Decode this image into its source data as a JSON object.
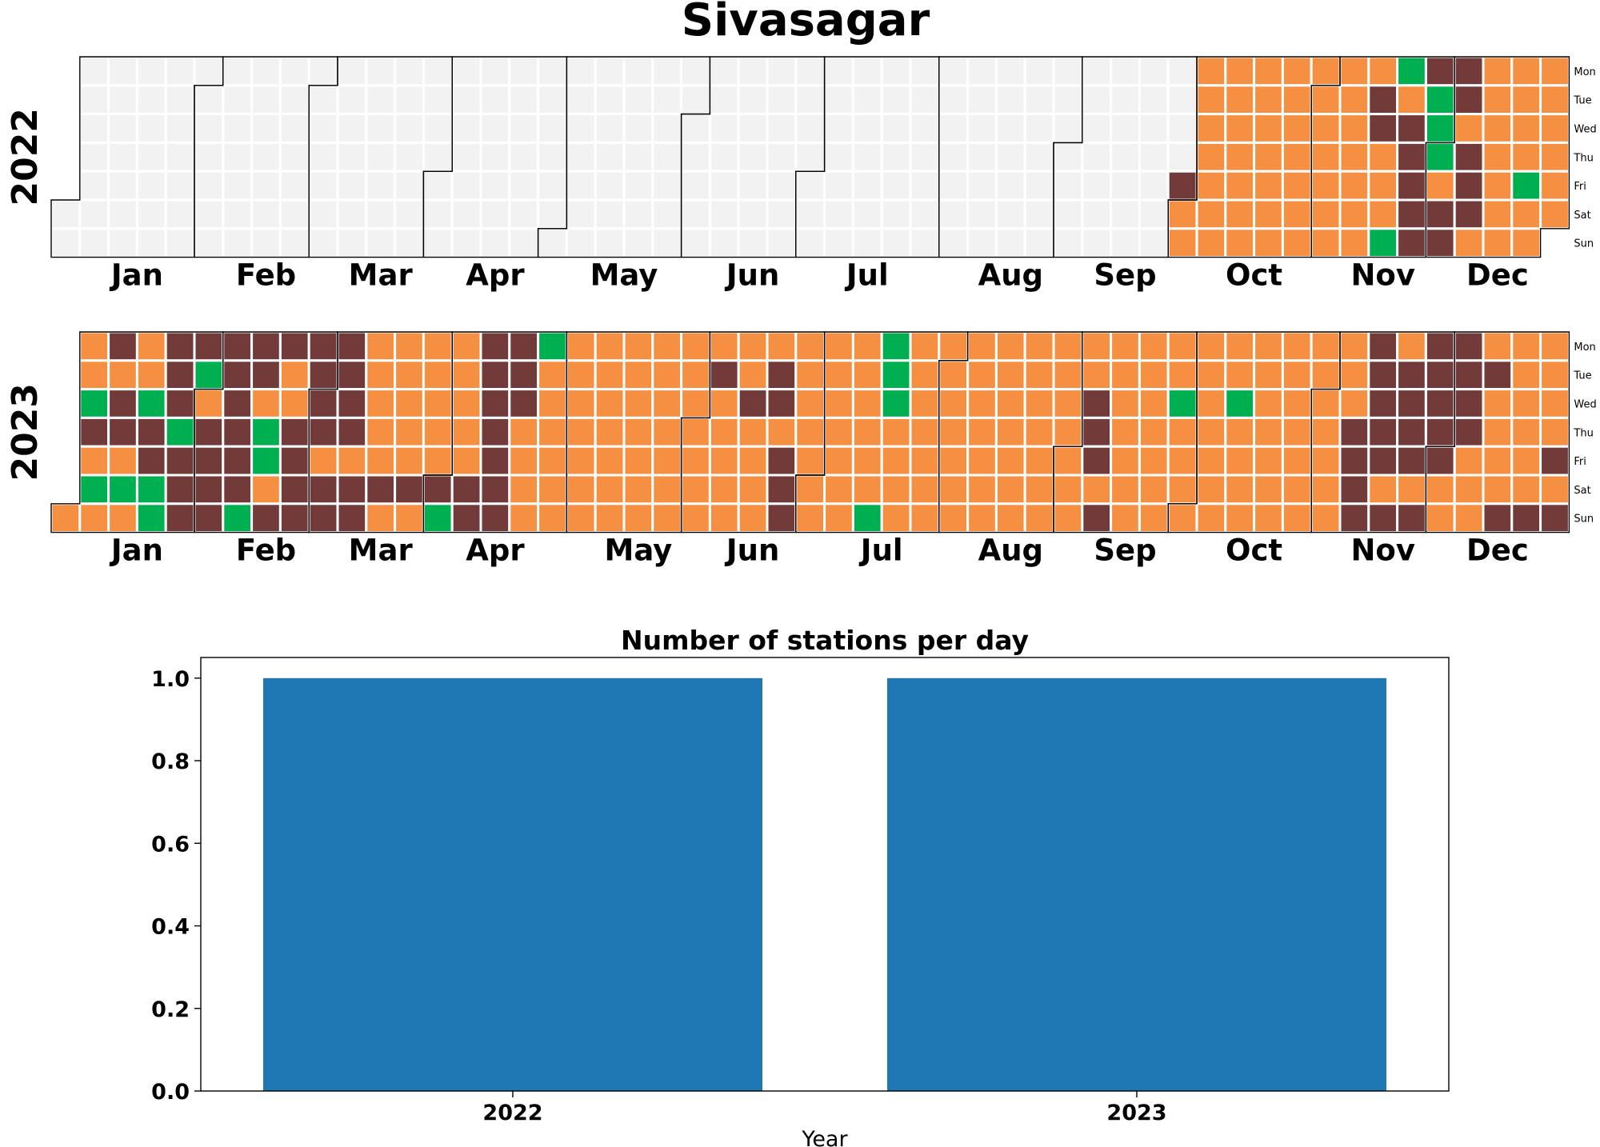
{
  "title": "Sivasagar",
  "colors": {
    "missing": "#f2f2f2",
    "orange": "#f59042",
    "maroon": "#733a3a",
    "green": "#00b050",
    "bar": "#1f77b4"
  },
  "chart_data": [
    {
      "type": "heatmap",
      "subtype": "calendar",
      "year": "2022",
      "weekday_labels": [
        "Mon",
        "Tue",
        "Wed",
        "Thu",
        "Fri",
        "Sat",
        "Sun"
      ],
      "month_labels": [
        "Jan",
        "Feb",
        "Mar",
        "Apr",
        "May",
        "Jun",
        "Jul",
        "Aug",
        "Sep",
        "Oct",
        "Nov",
        "Dec"
      ],
      "default_category": "missing",
      "data_start": "2022-09-30",
      "base_category": "orange",
      "overrides": {
        "2022-09-30": "maroon",
        "2022-11-15": "maroon",
        "2022-11-16": "maroon",
        "2022-11-20": "green",
        "2022-11-21": "green",
        "2022-11-23": "maroon",
        "2022-11-24": "maroon",
        "2022-11-25": "maroon",
        "2022-11-26": "maroon",
        "2022-11-27": "maroon",
        "2022-11-28": "maroon",
        "2022-11-29": "green",
        "2022-11-30": "green",
        "2022-12-01": "green",
        "2022-12-03": "maroon",
        "2022-12-04": "maroon",
        "2022-12-05": "maroon",
        "2022-12-06": "maroon",
        "2022-12-08": "maroon",
        "2022-12-09": "maroon",
        "2022-12-10": "maroon",
        "2022-12-23": "green"
      }
    },
    {
      "type": "heatmap",
      "subtype": "calendar",
      "year": "2023",
      "weekday_labels": [
        "Mon",
        "Tue",
        "Wed",
        "Thu",
        "Fri",
        "Sat",
        "Sun"
      ],
      "month_labels": [
        "Jan",
        "Feb",
        "Mar",
        "Apr",
        "May",
        "Jun",
        "Jul",
        "Aug",
        "Sep",
        "Oct",
        "Nov",
        "Dec"
      ],
      "default_category": "orange",
      "data_start": "2023-01-01",
      "base_category": "orange",
      "overrides": {
        "2023-01-04": "green",
        "2023-01-05": "maroon",
        "2023-01-07": "green",
        "2023-01-09": "maroon",
        "2023-01-11": "maroon",
        "2023-01-12": "maroon",
        "2023-01-14": "green",
        "2023-01-18": "green",
        "2023-01-19": "maroon",
        "2023-01-20": "maroon",
        "2023-01-21": "green",
        "2023-01-22": "green",
        "2023-01-23": "maroon",
        "2023-01-24": "maroon",
        "2023-01-25": "maroon",
        "2023-01-26": "green",
        "2023-01-27": "maroon",
        "2023-01-28": "maroon",
        "2023-01-29": "maroon",
        "2023-01-30": "maroon",
        "2023-01-31": "green",
        "2023-02-02": "maroon",
        "2023-02-03": "maroon",
        "2023-02-04": "maroon",
        "2023-02-05": "maroon",
        "2023-02-06": "maroon",
        "2023-02-07": "maroon",
        "2023-02-08": "maroon",
        "2023-02-09": "maroon",
        "2023-02-10": "maroon",
        "2023-02-11": "maroon",
        "2023-02-12": "green",
        "2023-02-13": "maroon",
        "2023-02-14": "maroon",
        "2023-02-16": "green",
        "2023-02-17": "green",
        "2023-02-19": "maroon",
        "2023-02-20": "maroon",
        "2023-02-23": "maroon",
        "2023-02-24": "maroon",
        "2023-02-25": "maroon",
        "2023-02-26": "maroon",
        "2023-02-27": "maroon",
        "2023-02-28": "maroon",
        "2023-03-01": "maroon",
        "2023-03-02": "maroon",
        "2023-03-04": "maroon",
        "2023-03-05": "maroon",
        "2023-03-06": "maroon",
        "2023-03-07": "maroon",
        "2023-03-08": "maroon",
        "2023-03-09": "maroon",
        "2023-03-11": "maroon",
        "2023-03-12": "maroon",
        "2023-03-18": "maroon",
        "2023-03-25": "maroon",
        "2023-04-01": "maroon",
        "2023-04-02": "green",
        "2023-04-08": "maroon",
        "2023-04-09": "maroon",
        "2023-04-10": "maroon",
        "2023-04-11": "maroon",
        "2023-04-12": "maroon",
        "2023-04-13": "maroon",
        "2023-04-14": "maroon",
        "2023-04-15": "maroon",
        "2023-04-16": "maroon",
        "2023-04-17": "maroon",
        "2023-04-18": "maroon",
        "2023-04-19": "maroon",
        "2023-04-24": "green",
        "2023-06-06": "maroon",
        "2023-06-14": "maroon",
        "2023-06-20": "maroon",
        "2023-06-21": "maroon",
        "2023-06-23": "maroon",
        "2023-06-24": "maroon",
        "2023-06-25": "maroon",
        "2023-07-16": "green",
        "2023-07-17": "green",
        "2023-07-18": "green",
        "2023-07-19": "green",
        "2023-09-06": "maroon",
        "2023-09-07": "maroon",
        "2023-09-08": "maroon",
        "2023-09-10": "maroon",
        "2023-09-27": "green",
        "2023-10-11": "green",
        "2023-11-09": "maroon",
        "2023-11-10": "maroon",
        "2023-11-11": "maroon",
        "2023-11-12": "maroon",
        "2023-11-13": "maroon",
        "2023-11-14": "maroon",
        "2023-11-15": "maroon",
        "2023-11-16": "maroon",
        "2023-11-17": "maroon",
        "2023-11-19": "maroon",
        "2023-11-21": "maroon",
        "2023-11-22": "maroon",
        "2023-11-23": "maroon",
        "2023-11-24": "maroon",
        "2023-11-26": "maroon",
        "2023-11-27": "maroon",
        "2023-11-28": "maroon",
        "2023-11-29": "maroon",
        "2023-11-30": "maroon",
        "2023-12-01": "maroon",
        "2023-12-04": "maroon",
        "2023-12-05": "maroon",
        "2023-12-06": "maroon",
        "2023-12-07": "maroon",
        "2023-12-12": "maroon",
        "2023-12-17": "maroon",
        "2023-12-24": "maroon",
        "2023-12-29": "maroon",
        "2023-12-31": "maroon"
      }
    },
    {
      "type": "bar",
      "title": "Number of stations per day",
      "xlabel": "Year",
      "ylabel": "",
      "categories": [
        "2022",
        "2023"
      ],
      "values": [
        1,
        1
      ],
      "ylim": [
        0,
        1.05
      ],
      "yticks": [
        "0.0",
        "0.2",
        "0.4",
        "0.6",
        "0.8",
        "1.0"
      ],
      "grid": false
    }
  ]
}
